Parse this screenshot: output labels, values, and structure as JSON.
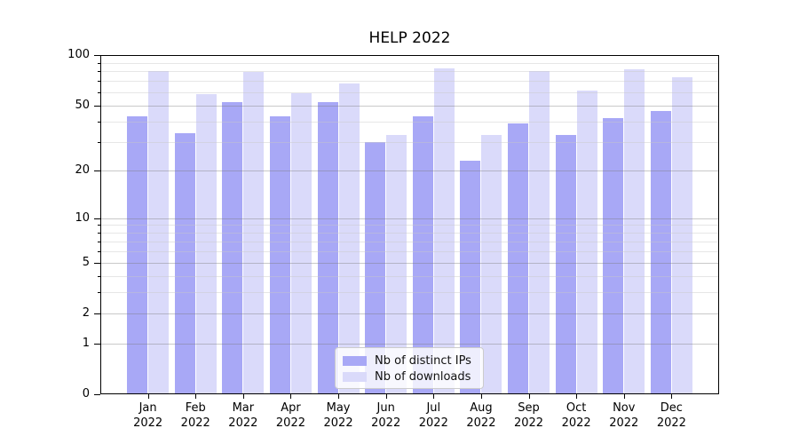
{
  "chart_data": {
    "type": "bar",
    "title": "HELP 2022",
    "categories": [
      "Jan 2022",
      "Feb 2022",
      "Mar 2022",
      "Apr 2022",
      "May 2022",
      "Jun 2022",
      "Jul 2022",
      "Aug 2022",
      "Sep 2022",
      "Oct 2022",
      "Nov 2022",
      "Dec 2022"
    ],
    "series": [
      {
        "name": "Nb of distinct IPs",
        "color": "#a8a8f6",
        "values": [
          43,
          34,
          52,
          43,
          52,
          30,
          43,
          23,
          39,
          33,
          42,
          46
        ]
      },
      {
        "name": "Nb of downloads",
        "color": "#dadafa",
        "values": [
          80,
          58,
          79,
          59,
          68,
          33,
          83,
          33,
          80,
          61,
          82,
          74
        ]
      }
    ],
    "xlabel": "",
    "ylabel": "",
    "y_axis": {
      "scale": "log1p",
      "range": [
        0,
        100
      ],
      "major_ticks": [
        100,
        50,
        20,
        10,
        5,
        2,
        1,
        0
      ],
      "minor_ticks": [
        3,
        4,
        6,
        7,
        8,
        9,
        30,
        40,
        60,
        70,
        80,
        90
      ]
    },
    "grid": "major-and-minor-horizontal",
    "legend_position": "lower center"
  },
  "legend": {
    "items": [
      {
        "label": "Nb of distinct IPs",
        "color": "#a8a8f6"
      },
      {
        "label": "Nb of downloads",
        "color": "#dadafa"
      }
    ]
  },
  "colors": {
    "background": "#ffffff",
    "axis": "#000000",
    "major_grid": "rgba(120,120,120,0.40)",
    "minor_grid": "rgba(200,200,200,0.45)",
    "legend_border": "#cccccc",
    "text": "#000000"
  }
}
